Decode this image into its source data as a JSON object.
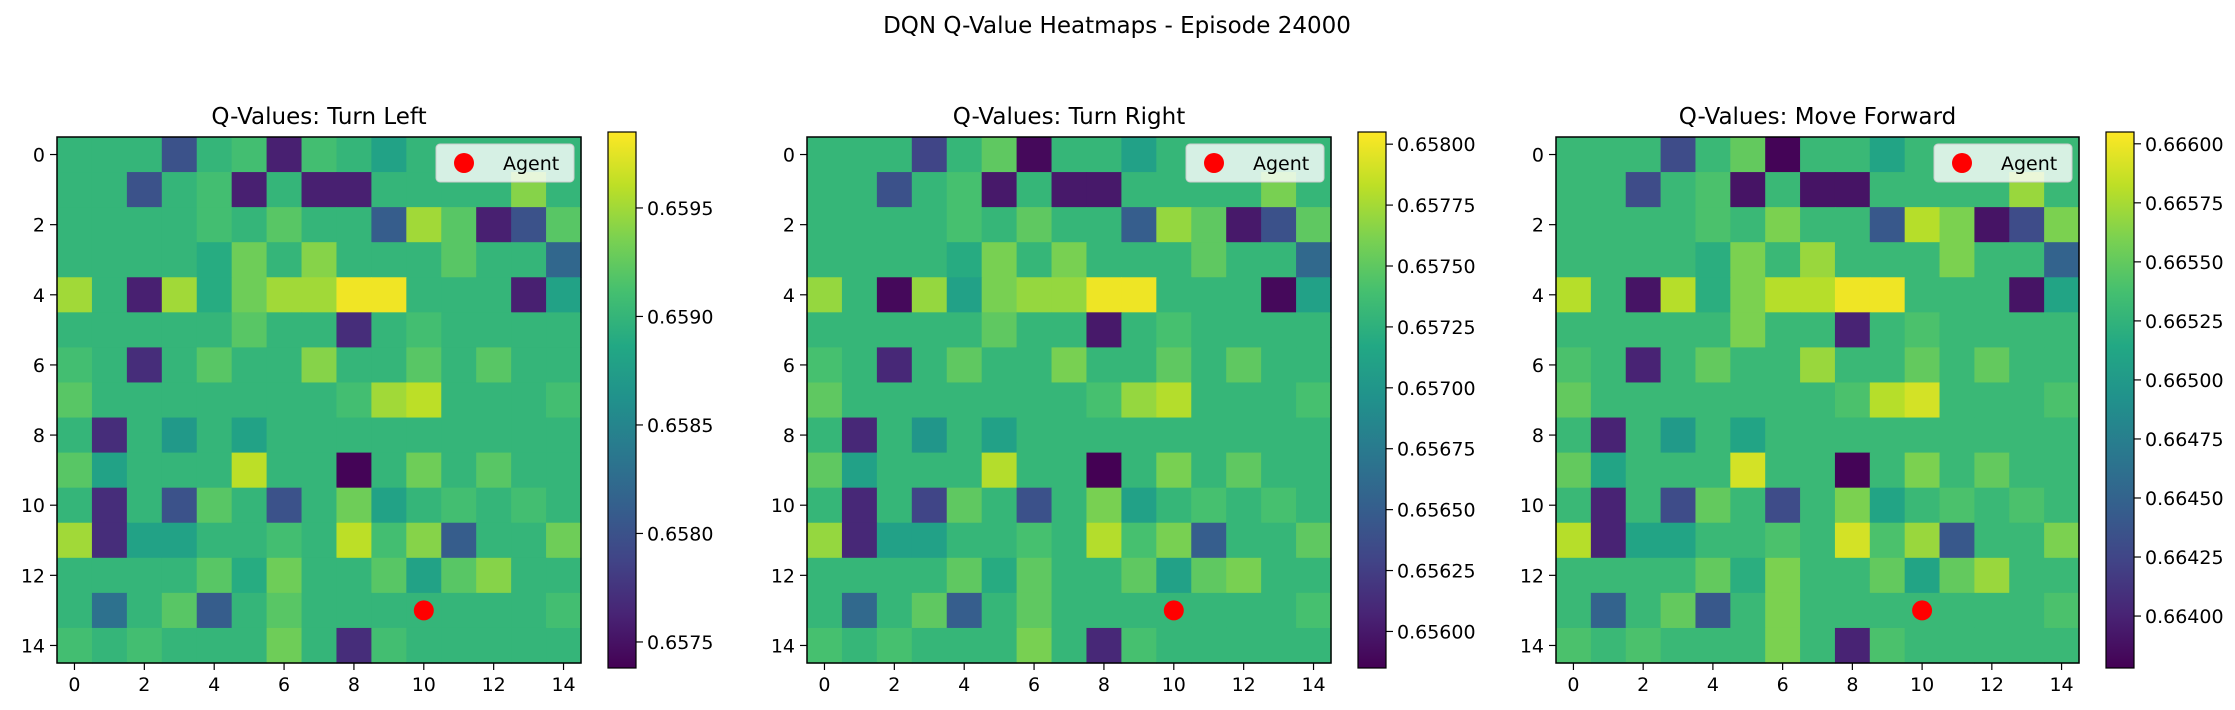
{
  "figure": {
    "suptitle": "DQN Q-Value Heatmaps - Episode 24000"
  },
  "colors": {
    "agent_marker": "#ff0000",
    "colormap": "viridis",
    "legend_bg": "#ffffff",
    "axes_edge": "#000000"
  },
  "chart_data": [
    {
      "type": "heatmap",
      "title": "Q-Values: Turn Left",
      "xlabel": "",
      "ylabel": "",
      "xticks": [
        0,
        2,
        4,
        6,
        8,
        10,
        12,
        14
      ],
      "yticks": [
        0,
        2,
        4,
        6,
        8,
        10,
        12,
        14
      ],
      "xlim": [
        -0.5,
        14.5
      ],
      "ylim": [
        14.5,
        -0.5
      ],
      "colorbar": {
        "vmin": 0.65738,
        "vmax": 0.65985,
        "ticks": [
          0.6575,
          0.658,
          0.6585,
          0.659,
          0.6595
        ],
        "tick_labels": [
          "0.6575",
          "0.6580",
          "0.6585",
          "0.6590",
          "0.6595"
        ]
      },
      "legend": {
        "entries": [
          "Agent"
        ],
        "location": "upper-right"
      },
      "agent": {
        "label": "Agent",
        "x": 10,
        "y": 13
      },
      "z": [
        [
          0.659,
          0.659,
          0.659,
          0.658,
          0.659,
          0.6591,
          0.6576,
          0.6591,
          0.659,
          0.6588,
          0.659,
          0.659,
          0.659,
          0.659,
          0.659
        ],
        [
          0.659,
          0.659,
          0.658,
          0.659,
          0.6591,
          0.6576,
          0.659,
          0.6576,
          0.6576,
          0.659,
          0.659,
          0.659,
          0.659,
          0.6594,
          0.659
        ],
        [
          0.659,
          0.659,
          0.659,
          0.659,
          0.6591,
          0.659,
          0.6592,
          0.659,
          0.659,
          0.6581,
          0.6595,
          0.6592,
          0.6576,
          0.658,
          0.6592
        ],
        [
          0.659,
          0.659,
          0.659,
          0.659,
          0.6589,
          0.6593,
          0.659,
          0.6594,
          0.659,
          0.659,
          0.659,
          0.6592,
          0.659,
          0.659,
          0.6582
        ],
        [
          0.6595,
          0.659,
          0.6576,
          0.6595,
          0.6589,
          0.6593,
          0.6595,
          0.6595,
          0.6598,
          0.6598,
          0.659,
          0.659,
          0.659,
          0.6576,
          0.6588
        ],
        [
          0.659,
          0.659,
          0.659,
          0.659,
          0.659,
          0.6592,
          0.659,
          0.659,
          0.6577,
          0.659,
          0.6591,
          0.659,
          0.659,
          0.659,
          0.659
        ],
        [
          0.6591,
          0.659,
          0.6577,
          0.659,
          0.6592,
          0.659,
          0.659,
          0.6594,
          0.659,
          0.659,
          0.6592,
          0.659,
          0.6592,
          0.659,
          0.659
        ],
        [
          0.6592,
          0.659,
          0.659,
          0.659,
          0.659,
          0.659,
          0.659,
          0.659,
          0.6591,
          0.6595,
          0.6596,
          0.659,
          0.659,
          0.659,
          0.6591
        ],
        [
          0.659,
          0.6577,
          0.659,
          0.6587,
          0.659,
          0.6588,
          0.659,
          0.659,
          0.659,
          0.659,
          0.659,
          0.659,
          0.659,
          0.659,
          0.659
        ],
        [
          0.6592,
          0.6588,
          0.659,
          0.659,
          0.659,
          0.6596,
          0.659,
          0.659,
          0.6574,
          0.659,
          0.6593,
          0.659,
          0.6592,
          0.659,
          0.659
        ],
        [
          0.659,
          0.6577,
          0.659,
          0.658,
          0.6592,
          0.659,
          0.658,
          0.659,
          0.6593,
          0.6588,
          0.659,
          0.6591,
          0.659,
          0.6591,
          0.659
        ],
        [
          0.6595,
          0.6577,
          0.6588,
          0.6588,
          0.659,
          0.659,
          0.6591,
          0.659,
          0.6596,
          0.6591,
          0.6594,
          0.6581,
          0.659,
          0.659,
          0.6593
        ],
        [
          0.659,
          0.659,
          0.659,
          0.659,
          0.6592,
          0.6589,
          0.6593,
          0.659,
          0.659,
          0.6592,
          0.6588,
          0.6592,
          0.6594,
          0.659,
          0.659
        ],
        [
          0.659,
          0.6583,
          0.659,
          0.6592,
          0.6581,
          0.659,
          0.6592,
          0.659,
          0.659,
          0.659,
          0.659,
          0.659,
          0.659,
          0.659,
          0.6591
        ],
        [
          0.6591,
          0.659,
          0.6591,
          0.659,
          0.659,
          0.659,
          0.6593,
          0.659,
          0.6577,
          0.6591,
          0.659,
          0.659,
          0.659,
          0.659,
          0.659
        ]
      ]
    },
    {
      "type": "heatmap",
      "title": "Q-Values: Turn Right",
      "xlabel": "",
      "ylabel": "",
      "xticks": [
        0,
        2,
        4,
        6,
        8,
        10,
        12,
        14
      ],
      "yticks": [
        0,
        2,
        4,
        6,
        8,
        10,
        12,
        14
      ],
      "xlim": [
        -0.5,
        14.5
      ],
      "ylim": [
        14.5,
        -0.5
      ],
      "colorbar": {
        "vmin": 0.65585,
        "vmax": 0.65805,
        "ticks": [
          0.656,
          0.65625,
          0.6565,
          0.65675,
          0.657,
          0.65725,
          0.6575,
          0.65775,
          0.658
        ],
        "tick_labels": [
          "0.65600",
          "0.65625",
          "0.65650",
          "0.65675",
          "0.65700",
          "0.65725",
          "0.65750",
          "0.65775",
          "0.65800"
        ]
      },
      "legend": {
        "entries": [
          "Agent"
        ],
        "location": "upper-right"
      },
      "agent": {
        "label": "Agent",
        "x": 10,
        "y": 13
      },
      "z": [
        [
          0.6573,
          0.6573,
          0.6573,
          0.6563,
          0.6573,
          0.6575,
          0.6559,
          0.6573,
          0.6573,
          0.6571,
          0.6573,
          0.6573,
          0.6573,
          0.6573,
          0.6573
        ],
        [
          0.6573,
          0.6573,
          0.6564,
          0.6573,
          0.6574,
          0.656,
          0.6573,
          0.656,
          0.656,
          0.6573,
          0.6573,
          0.6573,
          0.6573,
          0.6576,
          0.6573
        ],
        [
          0.6573,
          0.6573,
          0.6573,
          0.6573,
          0.6574,
          0.6573,
          0.6575,
          0.6573,
          0.6573,
          0.6565,
          0.6577,
          0.6575,
          0.656,
          0.6564,
          0.6575
        ],
        [
          0.6573,
          0.6573,
          0.6573,
          0.6573,
          0.6572,
          0.6576,
          0.6573,
          0.6576,
          0.6573,
          0.6573,
          0.6573,
          0.6575,
          0.6573,
          0.6573,
          0.6566
        ],
        [
          0.6577,
          0.6573,
          0.6559,
          0.6577,
          0.6571,
          0.6576,
          0.6577,
          0.6577,
          0.658,
          0.658,
          0.6573,
          0.6573,
          0.6573,
          0.6559,
          0.6571
        ],
        [
          0.6573,
          0.6573,
          0.6573,
          0.6573,
          0.6573,
          0.6575,
          0.6573,
          0.6573,
          0.656,
          0.6573,
          0.6574,
          0.6573,
          0.6573,
          0.6573,
          0.6573
        ],
        [
          0.6574,
          0.6573,
          0.6561,
          0.6573,
          0.6575,
          0.6573,
          0.6573,
          0.6576,
          0.6573,
          0.6573,
          0.6575,
          0.6573,
          0.6575,
          0.6573,
          0.6573
        ],
        [
          0.6575,
          0.6573,
          0.6573,
          0.6573,
          0.6573,
          0.6573,
          0.6573,
          0.6573,
          0.6574,
          0.6577,
          0.6578,
          0.6573,
          0.6573,
          0.6573,
          0.6574
        ],
        [
          0.6573,
          0.6561,
          0.6573,
          0.657,
          0.6573,
          0.6571,
          0.6573,
          0.6573,
          0.6573,
          0.6573,
          0.6573,
          0.6573,
          0.6573,
          0.6573,
          0.6573
        ],
        [
          0.6575,
          0.6571,
          0.6573,
          0.6573,
          0.6573,
          0.6578,
          0.6573,
          0.6573,
          0.6558,
          0.6573,
          0.6576,
          0.6573,
          0.6575,
          0.6573,
          0.6573
        ],
        [
          0.6573,
          0.6561,
          0.6573,
          0.6563,
          0.6575,
          0.6573,
          0.6564,
          0.6573,
          0.6576,
          0.6571,
          0.6573,
          0.6574,
          0.6573,
          0.6574,
          0.6573
        ],
        [
          0.6577,
          0.6561,
          0.6571,
          0.6571,
          0.6573,
          0.6573,
          0.6574,
          0.6573,
          0.6578,
          0.6574,
          0.6576,
          0.6565,
          0.6573,
          0.6573,
          0.6575
        ],
        [
          0.6573,
          0.6573,
          0.6573,
          0.6573,
          0.6575,
          0.6572,
          0.6575,
          0.6573,
          0.6573,
          0.6575,
          0.6571,
          0.6575,
          0.6576,
          0.6573,
          0.6573
        ],
        [
          0.6573,
          0.6566,
          0.6573,
          0.6575,
          0.6565,
          0.6573,
          0.6575,
          0.6573,
          0.6573,
          0.6573,
          0.6573,
          0.6573,
          0.6573,
          0.6573,
          0.6574
        ],
        [
          0.6574,
          0.6573,
          0.6574,
          0.6573,
          0.6573,
          0.6573,
          0.6576,
          0.6573,
          0.6561,
          0.6574,
          0.6573,
          0.6573,
          0.6573,
          0.6573,
          0.6573
        ]
      ]
    },
    {
      "type": "heatmap",
      "title": "Q-Values: Move Forward",
      "xlabel": "",
      "ylabel": "",
      "xticks": [
        0,
        2,
        4,
        6,
        8,
        10,
        12,
        14
      ],
      "yticks": [
        0,
        2,
        4,
        6,
        8,
        10,
        12,
        14
      ],
      "xlim": [
        -0.5,
        14.5
      ],
      "ylim": [
        14.5,
        -0.5
      ],
      "colorbar": {
        "vmin": 0.66378,
        "vmax": 0.66605,
        "ticks": [
          0.664,
          0.66425,
          0.6645,
          0.66475,
          0.665,
          0.66525,
          0.6655,
          0.66575,
          0.666
        ],
        "tick_labels": [
          "0.66400",
          "0.66425",
          "0.66450",
          "0.66475",
          "0.66500",
          "0.66525",
          "0.66550",
          "0.66575",
          "0.66600"
        ]
      },
      "legend": {
        "entries": [
          "Agent"
        ],
        "location": "upper-right"
      },
      "agent": {
        "label": "Agent",
        "x": 10,
        "y": 13
      },
      "z": [
        [
          0.6653,
          0.6653,
          0.6653,
          0.6643,
          0.6653,
          0.6655,
          0.6638,
          0.6653,
          0.6653,
          0.6651,
          0.6653,
          0.6653,
          0.6653,
          0.6653,
          0.6653
        ],
        [
          0.6653,
          0.6653,
          0.6643,
          0.6653,
          0.6654,
          0.6639,
          0.6653,
          0.6639,
          0.6639,
          0.6653,
          0.6653,
          0.6653,
          0.6653,
          0.6657,
          0.6653
        ],
        [
          0.6653,
          0.6653,
          0.6653,
          0.6653,
          0.6654,
          0.6653,
          0.6656,
          0.6653,
          0.6653,
          0.6644,
          0.6658,
          0.6656,
          0.6639,
          0.6643,
          0.6656
        ],
        [
          0.6653,
          0.6653,
          0.6653,
          0.6653,
          0.6652,
          0.6656,
          0.6653,
          0.6657,
          0.6653,
          0.6653,
          0.6653,
          0.6656,
          0.6653,
          0.6653,
          0.6645
        ],
        [
          0.6658,
          0.6653,
          0.6639,
          0.6658,
          0.6652,
          0.6656,
          0.6658,
          0.6658,
          0.666,
          0.666,
          0.6653,
          0.6653,
          0.6653,
          0.6639,
          0.6651
        ],
        [
          0.6653,
          0.6653,
          0.6653,
          0.6653,
          0.6653,
          0.6656,
          0.6653,
          0.6653,
          0.664,
          0.6653,
          0.6654,
          0.6653,
          0.6653,
          0.6653,
          0.6653
        ],
        [
          0.6654,
          0.6653,
          0.664,
          0.6653,
          0.6655,
          0.6653,
          0.6653,
          0.6657,
          0.6653,
          0.6653,
          0.6655,
          0.6653,
          0.6655,
          0.6653,
          0.6653
        ],
        [
          0.6655,
          0.6653,
          0.6653,
          0.6653,
          0.6653,
          0.6653,
          0.6653,
          0.6653,
          0.6654,
          0.6658,
          0.6659,
          0.6653,
          0.6653,
          0.6653,
          0.6654
        ],
        [
          0.6653,
          0.664,
          0.6653,
          0.665,
          0.6653,
          0.6651,
          0.6653,
          0.6653,
          0.6653,
          0.6653,
          0.6653,
          0.6653,
          0.6653,
          0.6653,
          0.6653
        ],
        [
          0.6655,
          0.6651,
          0.6653,
          0.6653,
          0.6653,
          0.6659,
          0.6653,
          0.6653,
          0.6638,
          0.6653,
          0.6656,
          0.6653,
          0.6655,
          0.6653,
          0.6653
        ],
        [
          0.6653,
          0.664,
          0.6653,
          0.6643,
          0.6655,
          0.6653,
          0.6643,
          0.6653,
          0.6656,
          0.6651,
          0.6653,
          0.6654,
          0.6653,
          0.6654,
          0.6653
        ],
        [
          0.6658,
          0.664,
          0.6651,
          0.6651,
          0.6653,
          0.6653,
          0.6654,
          0.6653,
          0.6659,
          0.6654,
          0.6657,
          0.6644,
          0.6653,
          0.6653,
          0.6656
        ],
        [
          0.6653,
          0.6653,
          0.6653,
          0.6653,
          0.6655,
          0.6652,
          0.6656,
          0.6653,
          0.6653,
          0.6655,
          0.6651,
          0.6655,
          0.6657,
          0.6653,
          0.6653
        ],
        [
          0.6653,
          0.6645,
          0.6653,
          0.6655,
          0.6644,
          0.6653,
          0.6656,
          0.6653,
          0.6653,
          0.6653,
          0.6653,
          0.6653,
          0.6653,
          0.6653,
          0.6654
        ],
        [
          0.6654,
          0.6653,
          0.6654,
          0.6653,
          0.6653,
          0.6653,
          0.6656,
          0.6653,
          0.664,
          0.6654,
          0.6653,
          0.6653,
          0.6653,
          0.6653,
          0.6653
        ]
      ]
    }
  ]
}
